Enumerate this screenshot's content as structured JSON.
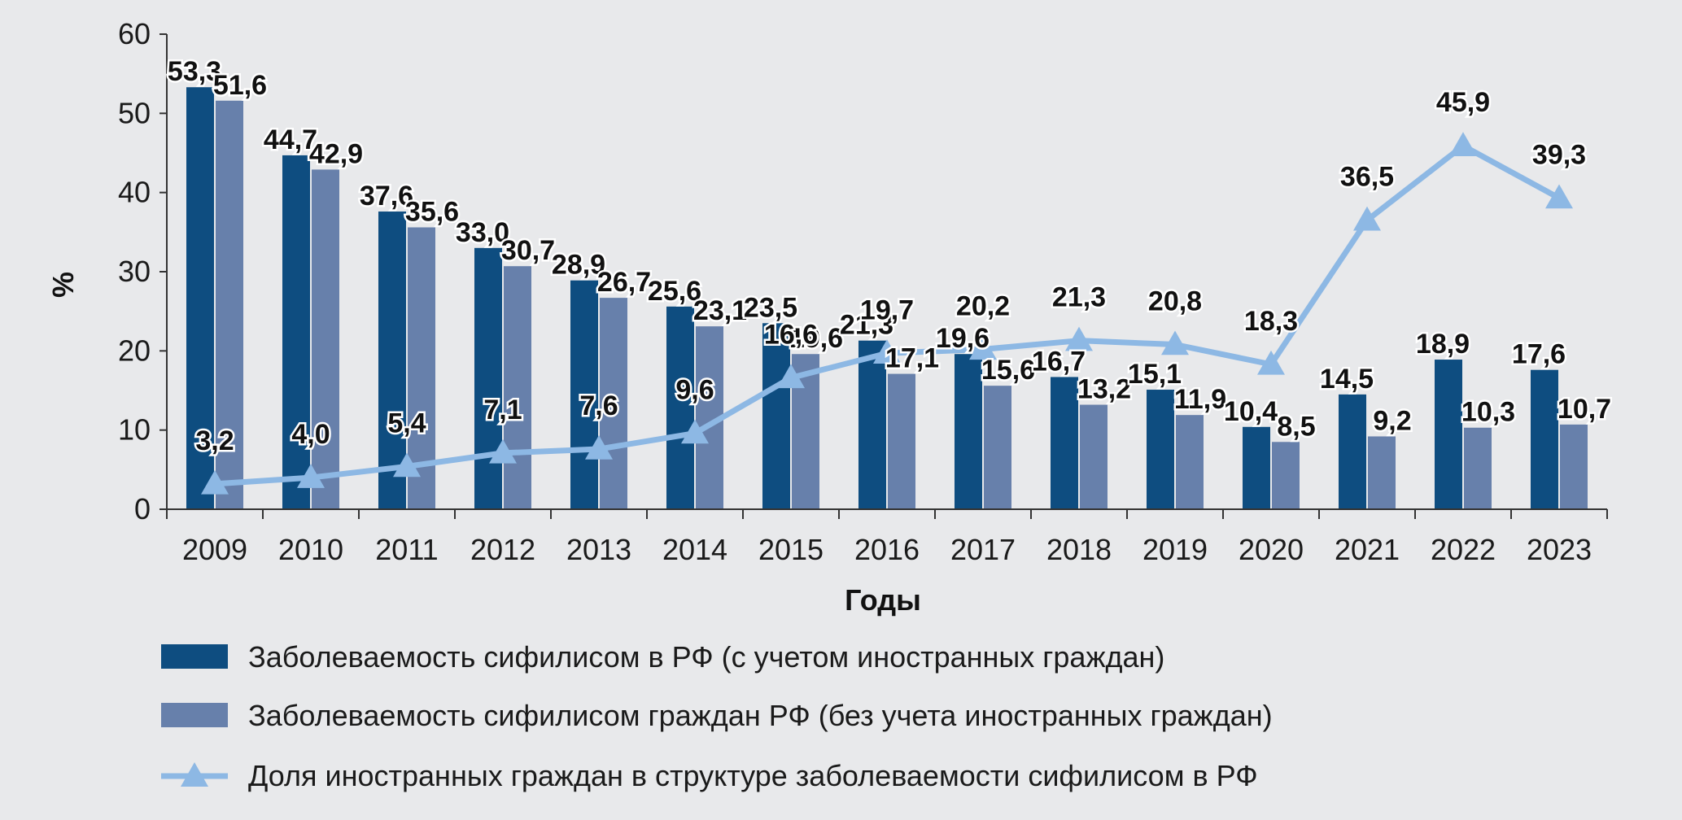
{
  "chart_data": {
    "type": "bar",
    "categories": [
      "2009",
      "2010",
      "2011",
      "2012",
      "2013",
      "2014",
      "2015",
      "2016",
      "2017",
      "2018",
      "2019",
      "2020",
      "2021",
      "2022",
      "2023"
    ],
    "series": [
      {
        "name": "Заболеваемость сифилисом в РФ (с учетом иностранных граждан)",
        "kind": "bar",
        "color": "#0e4d80",
        "values": [
          53.3,
          44.7,
          37.6,
          33.0,
          28.9,
          25.6,
          23.5,
          21.3,
          19.6,
          16.7,
          15.1,
          10.4,
          14.5,
          18.9,
          17.6
        ],
        "labels": [
          "53,3",
          "44,7",
          "37,6",
          "33,0",
          "28,9",
          "25,6",
          "23,5",
          "21,3",
          "19,6",
          "16,7",
          "15,1",
          "10,4",
          "14,5",
          "18,9",
          "17,6"
        ]
      },
      {
        "name": "Заболеваемость сифилисом граждан РФ (без учета иностранных граждан)",
        "kind": "bar",
        "color": "#6780ab",
        "values": [
          51.6,
          42.9,
          35.6,
          30.7,
          26.7,
          23.1,
          19.6,
          17.1,
          15.6,
          13.2,
          11.9,
          8.5,
          9.2,
          10.3,
          10.7
        ],
        "labels": [
          "51,6",
          "42,9",
          "35,6",
          "30,7",
          "26,7",
          "23,1",
          "19,6",
          "17,1",
          "15,6",
          "13,2",
          "11,9",
          "8,5",
          "9,2",
          "10,3",
          "10,7"
        ]
      },
      {
        "name": "Доля  иностранных граждан в структуре заболеваемости сифилисом в РФ",
        "kind": "line",
        "color": "#8db8e4",
        "values": [
          3.2,
          4.0,
          5.4,
          7.1,
          7.6,
          9.6,
          16.6,
          19.7,
          20.2,
          21.3,
          20.8,
          18.3,
          36.5,
          45.9,
          39.3
        ],
        "labels": [
          "3,2",
          "4,0",
          "5,4",
          "7,1",
          "7,6",
          "9,6",
          "16,6",
          "19,7",
          "20,2",
          "21,3",
          "20,8",
          "18,3",
          "36,5",
          "45,9",
          "39,3"
        ]
      }
    ],
    "xlabel": "Годы",
    "ylabel": "%",
    "ylim": [
      0,
      60
    ],
    "yticks": [
      "0",
      "10",
      "20",
      "30",
      "40",
      "50",
      "60"
    ],
    "legend_position": "bottom",
    "grid": false
  }
}
